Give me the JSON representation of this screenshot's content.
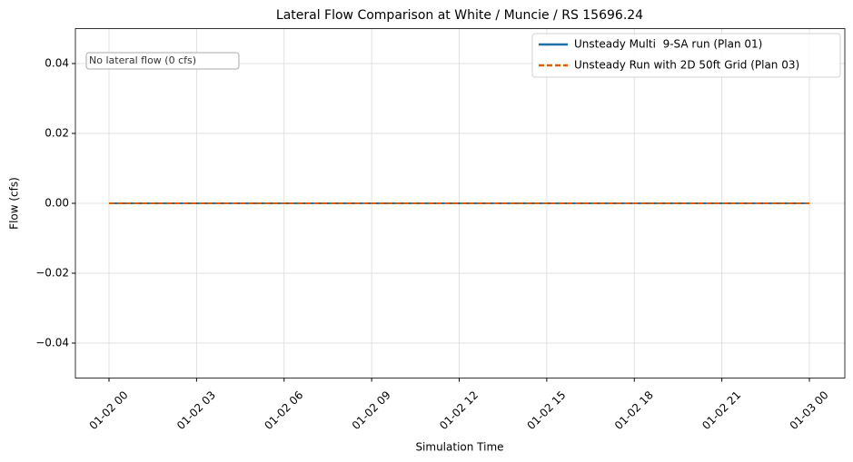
{
  "chart_data": {
    "type": "line",
    "title": "Lateral Flow Comparison at White / Muncie / RS 15696.24",
    "xlabel": "Simulation Time",
    "ylabel": "Flow (cfs)",
    "annotation": "No lateral flow (0 cfs)",
    "x": [
      "01-02 00",
      "01-02 03",
      "01-02 06",
      "01-02 09",
      "01-02 12",
      "01-02 15",
      "01-02 18",
      "01-02 21",
      "01-03 00"
    ],
    "series": [
      {
        "name": "Unsteady Multi  9-SA run (Plan 01)",
        "color": "#1f6fa8",
        "dashed": false,
        "values": [
          0,
          0,
          0,
          0,
          0,
          0,
          0,
          0,
          0
        ]
      },
      {
        "name": "Unsteady Run with 2D 50ft Grid (Plan 03)",
        "color": "#d95f02",
        "dashed": true,
        "values": [
          0,
          0,
          0,
          0,
          0,
          0,
          0,
          0,
          0
        ]
      }
    ],
    "ylim": [
      -0.05,
      0.05
    ],
    "yticks": [
      {
        "value": -0.04,
        "label": "−0.04"
      },
      {
        "value": -0.02,
        "label": "−0.02"
      },
      {
        "value": 0,
        "label": "0.00"
      },
      {
        "value": 0.02,
        "label": "0.02"
      },
      {
        "value": 0.04,
        "label": "0.04"
      }
    ],
    "grid": true,
    "legend": "upper right"
  }
}
